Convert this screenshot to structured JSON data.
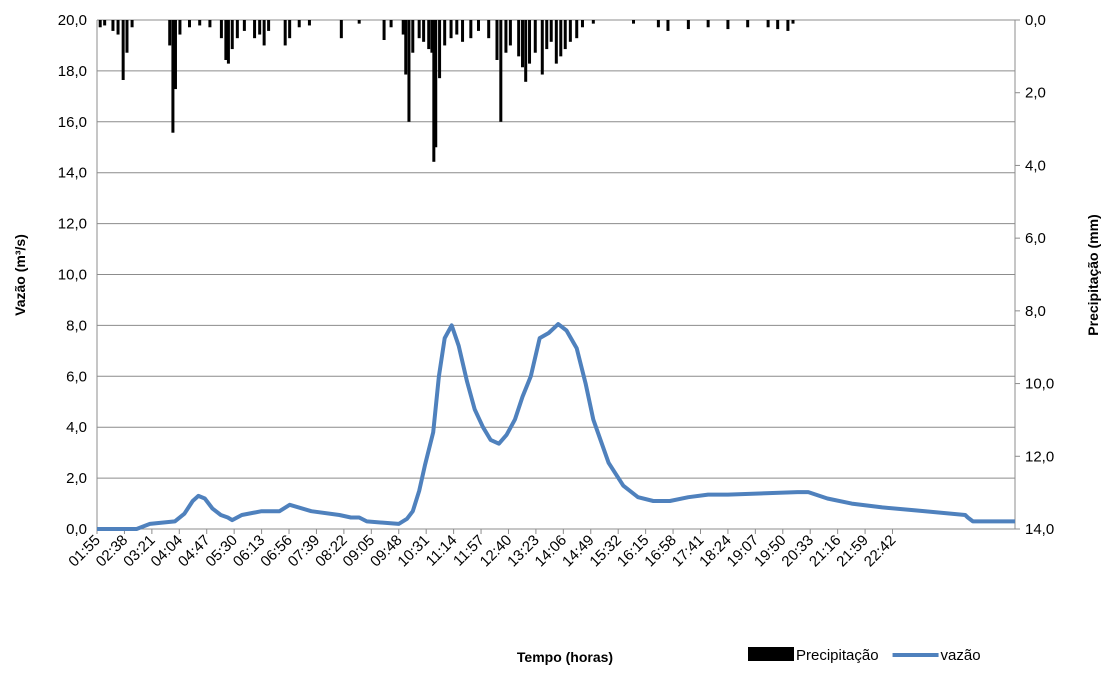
{
  "chart_data": {
    "type": "combo",
    "x_title": "Tempo  (horas)",
    "y_title": "Vazão (m³/s)",
    "y2_title": "Precipitação (mm)",
    "xlim": [
      "01:55",
      "01:54"
    ],
    "xticks": [
      "01:55",
      "02:38",
      "03:21",
      "04:04",
      "04:47",
      "05:30",
      "06:13",
      "06:56",
      "07:39",
      "08:22",
      "09:05",
      "09:48",
      "10:31",
      "11:14",
      "11:57",
      "12:40",
      "13:23",
      "14:06",
      "14:49",
      "15:32",
      "16:15",
      "16:58",
      "17:41",
      "18:24",
      "19:07",
      "19:50",
      "20:33",
      "21:16",
      "21:59",
      "22:42"
    ],
    "ylim": [
      0,
      20
    ],
    "yticks": [
      {
        "value": 0,
        "label": "0,0"
      },
      {
        "value": 2,
        "label": "2,0"
      },
      {
        "value": 4,
        "label": "4,0"
      },
      {
        "value": 6,
        "label": "6,0"
      },
      {
        "value": 8,
        "label": "8,0"
      },
      {
        "value": 10,
        "label": "10,0"
      },
      {
        "value": 12,
        "label": "12,0"
      },
      {
        "value": 14,
        "label": "14,0"
      },
      {
        "value": 16,
        "label": "16,0"
      },
      {
        "value": 18,
        "label": "18,0"
      },
      {
        "value": 20,
        "label": "20,0"
      }
    ],
    "y2lim": [
      0,
      14
    ],
    "y2_inverted": true,
    "y2ticks": [
      {
        "value": 0,
        "label": "0,0"
      },
      {
        "value": 2,
        "label": "2,0"
      },
      {
        "value": 4,
        "label": "4,0"
      },
      {
        "value": 6,
        "label": "6,0"
      },
      {
        "value": 8,
        "label": "8,0"
      },
      {
        "value": 10,
        "label": "10,0"
      },
      {
        "value": 12,
        "label": "12,0"
      },
      {
        "value": 14,
        "label": "14,0"
      }
    ],
    "grid": true,
    "legend": "bottom-right",
    "series": [
      {
        "name": "Precipitação",
        "type": "bar",
        "axis": "y2",
        "color": "#000000",
        "x": [
          "02:00",
          "02:07",
          "02:20",
          "02:28",
          "02:36",
          "02:42",
          "02:50",
          "03:49",
          "03:54",
          "03:58",
          "04:05",
          "04:20",
          "04:36",
          "04:52",
          "05:10",
          "05:17",
          "05:21",
          "05:27",
          "05:35",
          "05:46",
          "06:02",
          "06:10",
          "06:17",
          "06:24",
          "06:50",
          "06:57",
          "07:12",
          "07:28",
          "08:18",
          "08:46",
          "09:25",
          "09:36",
          "09:55",
          "09:59",
          "10:04",
          "10:10",
          "10:20",
          "10:27",
          "10:35",
          "10:40",
          "10:43",
          "10:46",
          "10:52",
          "11:00",
          "11:10",
          "11:19",
          "11:28",
          "11:41",
          "11:53",
          "12:09",
          "12:22",
          "12:28",
          "12:36",
          "12:43",
          "12:56",
          "13:02",
          "13:07",
          "13:13",
          "13:22",
          "13:33",
          "13:40",
          "13:47",
          "13:55",
          "14:02",
          "14:09",
          "14:17",
          "14:27",
          "14:36",
          "14:53",
          "15:56",
          "16:35",
          "16:50",
          "17:22",
          "17:53",
          "18:24",
          "18:55",
          "19:27",
          "19:42",
          "19:58",
          "20:06"
        ],
        "values": [
          0.2,
          0.15,
          0.3,
          0.4,
          1.65,
          0.9,
          0.2,
          0.7,
          3.1,
          1.9,
          0.4,
          0.2,
          0.15,
          0.2,
          0.5,
          1.1,
          1.2,
          0.8,
          0.5,
          0.3,
          0.5,
          0.4,
          0.7,
          0.3,
          0.7,
          0.5,
          0.2,
          0.15,
          0.5,
          0.1,
          0.55,
          0.2,
          0.4,
          1.5,
          2.8,
          0.9,
          0.5,
          0.6,
          0.8,
          0.9,
          3.9,
          3.5,
          1.6,
          0.7,
          0.5,
          0.4,
          0.6,
          0.5,
          0.3,
          0.5,
          1.1,
          2.8,
          0.9,
          0.7,
          1.0,
          1.3,
          1.7,
          1.2,
          0.9,
          1.5,
          0.8,
          0.6,
          1.2,
          1.0,
          0.8,
          0.6,
          0.5,
          0.2,
          0.1,
          0.1,
          0.2,
          0.3,
          0.25,
          0.2,
          0.25,
          0.2,
          0.2,
          0.25,
          0.3,
          0.1
        ]
      },
      {
        "name": "vazão",
        "type": "line",
        "color": "#4f81bd",
        "x": [
          "01:55",
          "02:57",
          "03:18",
          "03:57",
          "04:12",
          "04:25",
          "04:34",
          "04:44",
          "04:56",
          "05:09",
          "05:20",
          "05:27",
          "05:42",
          "06:13",
          "06:41",
          "06:57",
          "07:31",
          "08:15",
          "08:33",
          "08:46",
          "08:58",
          "09:48",
          "10:01",
          "10:10",
          "10:20",
          "10:29",
          "10:42",
          "10:51",
          "11:00",
          "11:11",
          "11:22",
          "11:35",
          "11:47",
          "12:00",
          "12:12",
          "12:25",
          "12:37",
          "12:50",
          "13:02",
          "13:15",
          "13:29",
          "13:43",
          "13:58",
          "14:11",
          "14:27",
          "14:41",
          "14:53",
          "15:17",
          "15:40",
          "16:03",
          "16:27",
          "16:53",
          "17:22",
          "17:53",
          "18:24",
          "20:13",
          "20:30",
          "21:00",
          "21:38",
          "22:26",
          "23:33",
          "00:36",
          "00:40",
          "00:48",
          "01:54"
        ],
        "values": [
          0,
          0,
          0.2,
          0.3,
          0.6,
          1.1,
          1.3,
          1.2,
          0.8,
          0.55,
          0.45,
          0.35,
          0.55,
          0.7,
          0.7,
          0.95,
          0.7,
          0.55,
          0.45,
          0.45,
          0.3,
          0.2,
          0.4,
          0.7,
          1.5,
          2.5,
          3.8,
          6.0,
          7.5,
          8.0,
          7.2,
          5.8,
          4.7,
          4.0,
          3.5,
          3.35,
          3.7,
          4.3,
          5.2,
          6.0,
          7.5,
          7.7,
          8.05,
          7.8,
          7.1,
          5.7,
          4.3,
          2.6,
          1.7,
          1.25,
          1.1,
          1.1,
          1.25,
          1.35,
          1.35,
          1.45,
          1.45,
          1.2,
          1.0,
          0.85,
          0.7,
          0.55,
          0.45,
          0.3,
          0.3
        ]
      }
    ]
  }
}
